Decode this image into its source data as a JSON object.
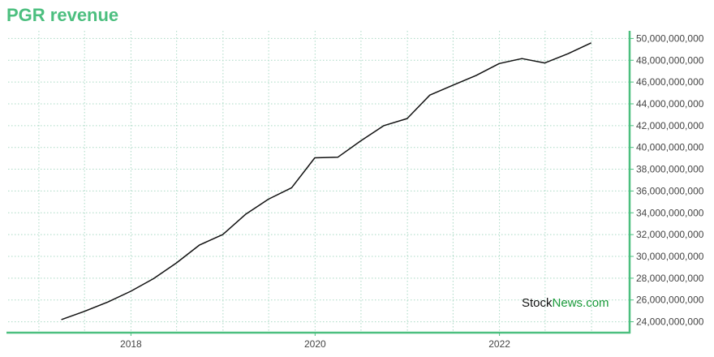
{
  "chart_data": {
    "type": "line",
    "title": "PGR revenue",
    "xlabel": "",
    "ylabel": "",
    "x_tick_labels": [
      "2018",
      "2020",
      "2022"
    ],
    "y_tick_labels": [
      "24,000,000,000",
      "26,000,000,000",
      "28,000,000,000",
      "30,000,000,000",
      "32,000,000,000",
      "34,000,000,000",
      "36,000,000,000",
      "38,000,000,000",
      "40,000,000,000",
      "42,000,000,000",
      "44,000,000,000",
      "46,000,000,000",
      "48,000,000,000",
      "50,000,000,000"
    ],
    "ylim": [
      23000000000,
      50700000000
    ],
    "xlim": [
      "2016-09-01",
      "2023-06-01"
    ],
    "grid": true,
    "y_axis_position": "right",
    "series": [
      {
        "points": [
          {
            "x": "2017-03-31",
            "y": 24200000000
          },
          {
            "x": "2017-06-30",
            "y": 24950000000
          },
          {
            "x": "2017-09-30",
            "y": 25800000000
          },
          {
            "x": "2017-12-31",
            "y": 26800000000
          },
          {
            "x": "2018-03-31",
            "y": 27950000000
          },
          {
            "x": "2018-06-30",
            "y": 29400000000
          },
          {
            "x": "2018-09-30",
            "y": 31050000000
          },
          {
            "x": "2018-12-31",
            "y": 32000000000
          },
          {
            "x": "2019-03-31",
            "y": 33850000000
          },
          {
            "x": "2019-06-30",
            "y": 35250000000
          },
          {
            "x": "2019-09-30",
            "y": 36300000000
          },
          {
            "x": "2019-12-31",
            "y": 39050000000
          },
          {
            "x": "2020-03-31",
            "y": 39100000000
          },
          {
            "x": "2020-06-30",
            "y": 40600000000
          },
          {
            "x": "2020-09-30",
            "y": 42000000000
          },
          {
            "x": "2020-12-31",
            "y": 42650000000
          },
          {
            "x": "2021-03-31",
            "y": 44800000000
          },
          {
            "x": "2021-06-30",
            "y": 45700000000
          },
          {
            "x": "2021-09-30",
            "y": 46600000000
          },
          {
            "x": "2021-12-31",
            "y": 47700000000
          },
          {
            "x": "2022-03-31",
            "y": 48150000000
          },
          {
            "x": "2022-06-30",
            "y": 47750000000
          },
          {
            "x": "2022-09-30",
            "y": 48600000000
          },
          {
            "x": "2022-12-31",
            "y": 49600000000
          }
        ]
      }
    ]
  },
  "watermark": {
    "part1": "Stock",
    "part2": "News.com"
  },
  "colors": {
    "accent": "#4cbf7f",
    "line": "#111111",
    "brand_green": "#1a9a3a"
  }
}
